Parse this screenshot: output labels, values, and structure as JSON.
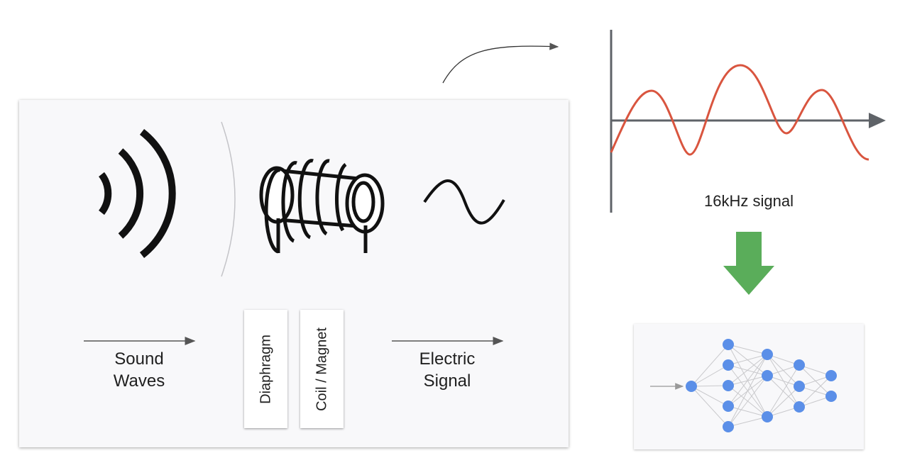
{
  "microphone": {
    "sound_waves_label": "Sound\nWaves",
    "diaphragm_label": "Diaphragm",
    "coil_magnet_label": "Coil / Magnet",
    "electric_signal_label": "Electric\nSignal"
  },
  "signal": {
    "caption": "16kHz signal",
    "wave_color": "#d9553f",
    "axis_color": "#5f6368"
  },
  "arrow_color": "#5aad5a",
  "network": {
    "node_color": "#5b8fe8",
    "layers": [
      1,
      5,
      3,
      3,
      2
    ]
  }
}
